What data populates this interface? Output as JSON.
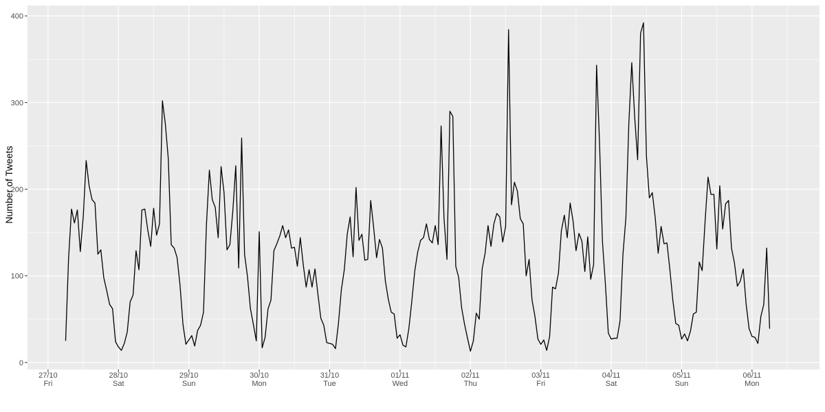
{
  "chart_data": {
    "type": "line",
    "title": "",
    "xlabel": "",
    "ylabel": "Number of Tweets",
    "ylim": [
      -8,
      412
    ],
    "xlim": [
      "2017-10-26 17:00",
      "2017-11-06 23:00"
    ],
    "grid": true,
    "legend": "none",
    "x_ticks": [
      {
        "at": "2017-10-27 00:00",
        "date": "27/10",
        "day": "Fri"
      },
      {
        "at": "2017-10-28 00:00",
        "date": "28/10",
        "day": "Sat"
      },
      {
        "at": "2017-10-29 00:00",
        "date": "29/10",
        "day": "Sun"
      },
      {
        "at": "2017-10-30 00:00",
        "date": "30/10",
        "day": "Mon"
      },
      {
        "at": "2017-10-31 00:00",
        "date": "31/10",
        "day": "Tue"
      },
      {
        "at": "2017-11-01 00:00",
        "date": "01/11",
        "day": "Wed"
      },
      {
        "at": "2017-11-02 00:00",
        "date": "02/11",
        "day": "Thu"
      },
      {
        "at": "2017-11-03 00:00",
        "date": "03/11",
        "day": "Fri"
      },
      {
        "at": "2017-11-04 00:00",
        "date": "04/11",
        "day": "Sat"
      },
      {
        "at": "2017-11-05 00:00",
        "date": "05/11",
        "day": "Sun"
      },
      {
        "at": "2017-11-06 00:00",
        "date": "06/11",
        "day": "Mon"
      }
    ],
    "y_ticks": [
      0,
      100,
      200,
      300,
      400
    ],
    "series": [
      {
        "start": "2017-10-27 06:00",
        "interval_hours": 1,
        "values": [
          25,
          120,
          177,
          161,
          176,
          128,
          168,
          233,
          204,
          188,
          184,
          125,
          130,
          98,
          83,
          67,
          62,
          24,
          18,
          14,
          22,
          35,
          70,
          78,
          129,
          107,
          176,
          177,
          153,
          134,
          178,
          147,
          160,
          302,
          275,
          235,
          136,
          132,
          121,
          89,
          44,
          21,
          26,
          31,
          19,
          37,
          43,
          58,
          159,
          222,
          188,
          179,
          144,
          226,
          196,
          130,
          136,
          175,
          227,
          109,
          259,
          125,
          99,
          62,
          44,
          25,
          151,
          17,
          29,
          62,
          72,
          129,
          137,
          146,
          158,
          144,
          153,
          132,
          133,
          111,
          144,
          113,
          87,
          107,
          87,
          108,
          79,
          51,
          43,
          23,
          22,
          21,
          16,
          45,
          84,
          107,
          148,
          168,
          122,
          202,
          141,
          148,
          118,
          119,
          187,
          156,
          121,
          142,
          132,
          94,
          73,
          58,
          56,
          28,
          32,
          20,
          18,
          39,
          70,
          105,
          127,
          141,
          144,
          160,
          142,
          138,
          158,
          136,
          273,
          166,
          119,
          290,
          284,
          111,
          98,
          63,
          44,
          28,
          13,
          25,
          57,
          50,
          108,
          126,
          158,
          134,
          160,
          172,
          168,
          139,
          157,
          384,
          182,
          208,
          198,
          166,
          160,
          100,
          119,
          72,
          53,
          27,
          21,
          26,
          14,
          30,
          87,
          85,
          103,
          152,
          170,
          144,
          184,
          163,
          129,
          149,
          140,
          105,
          145,
          96,
          113,
          343,
          255,
          140,
          91,
          34,
          27,
          28,
          28,
          48,
          125,
          167,
          276,
          346,
          283,
          234,
          380,
          392,
          238,
          190,
          196,
          167,
          126,
          157,
          137,
          138,
          107,
          72,
          45,
          43,
          27,
          33,
          25,
          36,
          56,
          58,
          116,
          106,
          163,
          214,
          194,
          194,
          131,
          204,
          154,
          183,
          187,
          132,
          115,
          88,
          94,
          108,
          67,
          39,
          30,
          29,
          22,
          53,
          67,
          132,
          39
        ]
      }
    ]
  }
}
